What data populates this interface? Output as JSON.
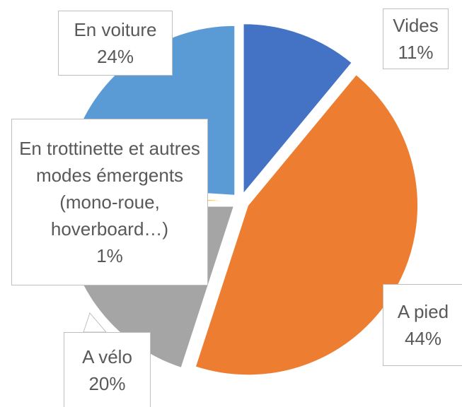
{
  "chart_data": {
    "type": "pie",
    "categories": [
      "Vides",
      "A pied",
      "A vélo",
      "En trottinette et autres modes émergents (mono-roue, hoverboard…)",
      "En voiture"
    ],
    "values": [
      11,
      44,
      20,
      1,
      24
    ],
    "value_labels": [
      "11%",
      "44%",
      "20%",
      "1%",
      "24%"
    ],
    "colors": [
      "#4472c4",
      "#ed7d31",
      "#a5a5a5",
      "#ffc000",
      "#5b9bd5"
    ]
  }
}
